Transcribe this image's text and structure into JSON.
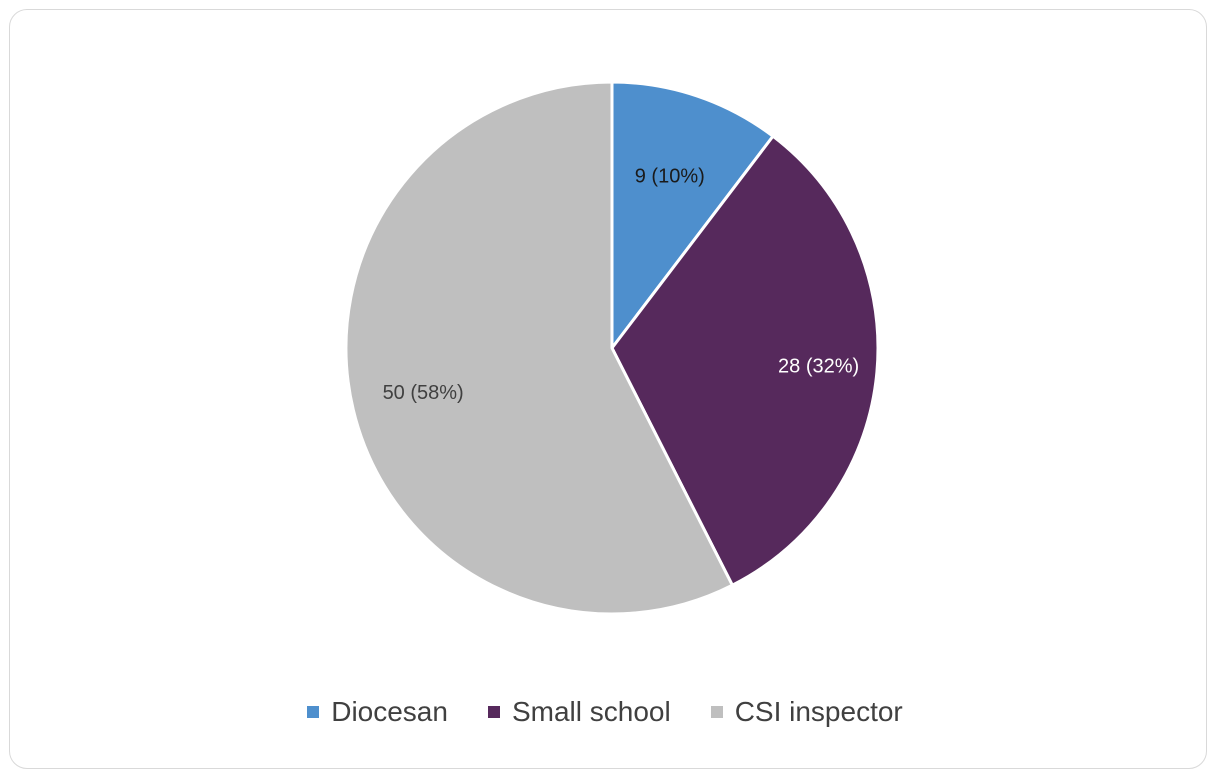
{
  "chart_data": {
    "type": "pie",
    "slices": [
      {
        "name": "Diocesan",
        "value": 9,
        "percent": "10%",
        "label": "9 (10%)",
        "color": "#4e8fcd",
        "label_color": "#1a1a1a"
      },
      {
        "name": "Small school",
        "value": 28,
        "percent": "32%",
        "label": "28 (32%)",
        "color": "#56295c",
        "label_color": "#ffffff"
      },
      {
        "name": "CSI inspector",
        "value": 50,
        "percent": "58%",
        "label": "50 (58%)",
        "color": "#bfbfbf",
        "label_color": "#404040"
      }
    ],
    "legend_position": "bottom",
    "start_angle": "12 o'clock, clockwise"
  }
}
